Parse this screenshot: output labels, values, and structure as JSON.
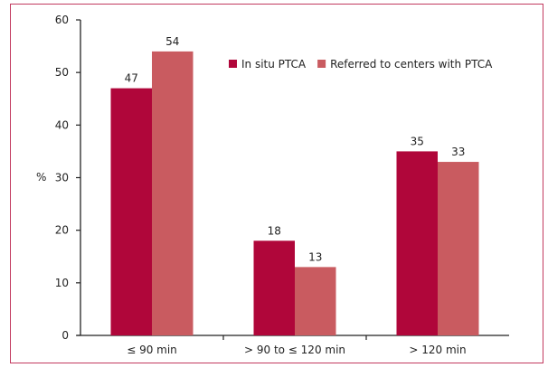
{
  "chart_data": {
    "type": "bar",
    "title": "",
    "xlabel": "",
    "ylabel": "%",
    "ylim": [
      0,
      60
    ],
    "yticks": [
      0,
      10,
      20,
      30,
      40,
      50,
      60
    ],
    "categories": [
      "≤ 90 min",
      "> 90 to ≤ 120 min",
      "> 120 min"
    ],
    "series": [
      {
        "name": "In situ PTCA",
        "values": [
          47,
          18,
          35
        ],
        "color": "#b0063a"
      },
      {
        "name": "Referred to centers with PTCA",
        "values": [
          54,
          13,
          33
        ],
        "color": "#c95b60"
      }
    ],
    "legend_position": "top-right",
    "grid": false
  }
}
